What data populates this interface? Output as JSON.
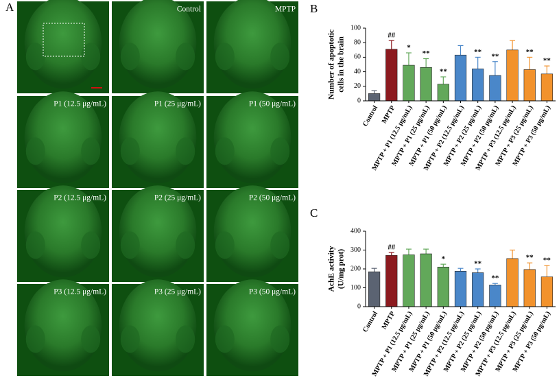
{
  "image_panel": {
    "label": "A",
    "captions": [
      "Control",
      "MPTP",
      "P1 (12.5 μg/mL)",
      "P1 (25 μg/mL)",
      "P1 (50 μg/mL)",
      "P2 (12.5 μg/mL)",
      "P2 (25 μg/mL)",
      "P2 (50 μg/mL)",
      "P3 (12.5 μg/mL)",
      "P3 (25 μg/mL)",
      "P3 (50 μg/mL)"
    ]
  },
  "chart_data": [
    {
      "type": "bar",
      "label": "B",
      "ylabel": [
        "Number of apoptotic",
        "cells in the brain"
      ],
      "categories": [
        "Control",
        "MPTP",
        "MPTP + P1 (12.5 μg/mL)",
        "MPTP + P1 (25 μg/mL)",
        "MPTP + P1 (50 μg/mL)",
        "MPTP + P2 (12.5 μg/mL)",
        "MPTP + P2 (25 μg/mL)",
        "MPTP + P2 (50 μg/mL)",
        "MPTP + P3 (12.5 μg/mL)",
        "MPTP + P3 (25 μg/mL)",
        "MPTP + P3 (50 μg/mL)"
      ],
      "values": [
        10,
        71,
        49,
        46,
        23,
        63,
        44,
        35,
        70,
        43,
        37
      ],
      "errors": [
        4,
        12,
        17,
        12,
        10,
        13,
        16,
        19,
        13,
        17,
        11
      ],
      "annotations": [
        null,
        "##",
        "*",
        "**",
        "**",
        null,
        "**",
        "**",
        null,
        "**",
        "**"
      ],
      "colors": [
        "#5b6372",
        "#8c1a1f",
        "#62a85a",
        "#62a85a",
        "#62a85a",
        "#4a87c9",
        "#4a87c9",
        "#4a87c9",
        "#f2922c",
        "#f2922c",
        "#f2922c"
      ],
      "ylim": [
        0,
        100
      ],
      "yticks": [
        0,
        20,
        40,
        60,
        80,
        100
      ]
    },
    {
      "type": "bar",
      "label": "C",
      "ylabel": [
        "AchE activity",
        "(U/mg prot)"
      ],
      "categories": [
        "Control",
        "MPTP",
        "MPTP + P1 (12.5 μg/mL)",
        "MPTP + P1 (25 μg/mL)",
        "MPTP + P1 (50 μg/mL)",
        "MPTP + P2 (12.5 μg/mL)",
        "MPTP + P2 (25 μg/mL)",
        "MPTP + P2 (50 μg/mL)",
        "MPTP + P3 (12.5 μg/mL)",
        "MPTP + P3 (25 μg/mL)",
        "MPTP + P3 (50 μg/mL)"
      ],
      "values": [
        185,
        272,
        275,
        280,
        210,
        188,
        180,
        115,
        255,
        197,
        158
      ],
      "errors": [
        18,
        15,
        30,
        25,
        15,
        15,
        20,
        8,
        45,
        35,
        60
      ],
      "annotations": [
        null,
        "##",
        null,
        null,
        "*",
        null,
        "**",
        "**",
        null,
        "**",
        "**"
      ],
      "colors": [
        "#5b6372",
        "#8c1a1f",
        "#62a85a",
        "#62a85a",
        "#62a85a",
        "#4a87c9",
        "#4a87c9",
        "#4a87c9",
        "#f2922c",
        "#f2922c",
        "#f2922c"
      ],
      "ylim": [
        0,
        400
      ],
      "yticks": [
        0,
        100,
        200,
        300,
        400
      ]
    }
  ]
}
